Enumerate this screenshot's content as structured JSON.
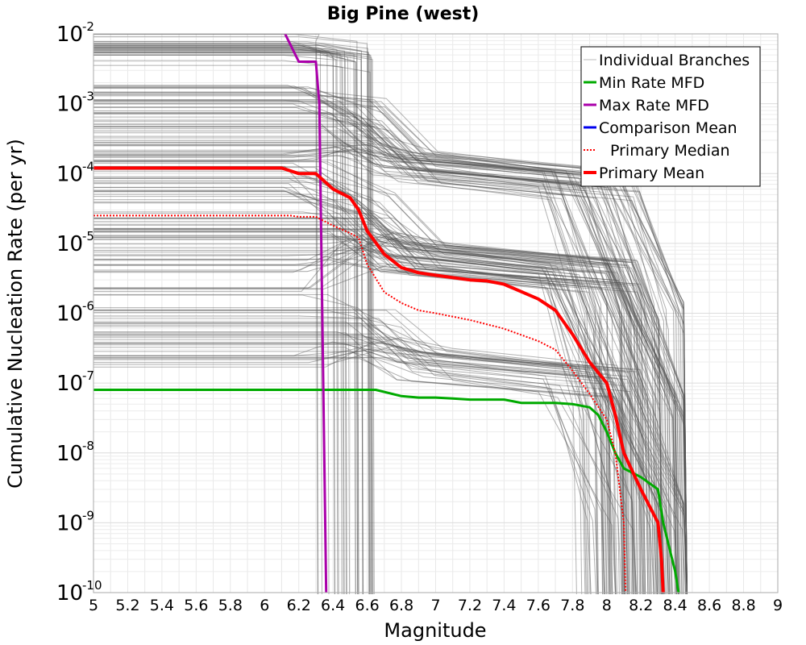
{
  "chart_data": {
    "type": "line",
    "title": "Big Pine (west)",
    "xlabel": "Magnitude",
    "ylabel": "Cumulative Nucleation Rate (per yr)",
    "xlim": [
      5,
      9
    ],
    "ylim": [
      1e-10,
      0.01
    ],
    "yscale": "log",
    "grid": true,
    "legend_position": "top-right",
    "x_ticks": [
      "5",
      "5.2",
      "5.4",
      "5.6",
      "5.8",
      "6",
      "6.2",
      "6.4",
      "6.6",
      "6.8",
      "7",
      "7.2",
      "7.4",
      "7.6",
      "7.8",
      "8",
      "8.2",
      "8.4",
      "8.6",
      "8.8",
      "9"
    ],
    "y_ticks": [
      {
        "base": "10",
        "exp": "-2",
        "value": 0.01
      },
      {
        "base": "10",
        "exp": "-3",
        "value": 0.001
      },
      {
        "base": "10",
        "exp": "-4",
        "value": 0.0001
      },
      {
        "base": "10",
        "exp": "-5",
        "value": 1e-05
      },
      {
        "base": "10",
        "exp": "-6",
        "value": 1e-06
      },
      {
        "base": "10",
        "exp": "-7",
        "value": 1e-07
      },
      {
        "base": "10",
        "exp": "-8",
        "value": 1e-08
      },
      {
        "base": "10",
        "exp": "-9",
        "value": 1e-09
      },
      {
        "base": "10",
        "exp": "-10",
        "value": 1e-10
      }
    ],
    "series": [
      {
        "name": "Min Rate MFD",
        "color": "#00aa00",
        "style": "solid",
        "x": [
          5.0,
          6.65,
          6.8,
          6.9,
          7.0,
          7.1,
          7.2,
          7.4,
          7.5,
          7.6,
          7.7,
          7.8,
          7.9,
          7.95,
          8.0,
          8.05,
          8.1,
          8.2,
          8.3,
          8.33,
          8.4,
          8.42
        ],
        "y": [
          8e-08,
          8e-08,
          6.5e-08,
          6.2e-08,
          6.2e-08,
          6e-08,
          5.8e-08,
          5.8e-08,
          5.2e-08,
          5.2e-08,
          5.2e-08,
          5e-08,
          4.5e-08,
          3.5e-08,
          2e-08,
          1e-08,
          6e-09,
          4.5e-09,
          3e-09,
          1e-09,
          2e-10,
          1e-10
        ]
      },
      {
        "name": "Max Rate MFD",
        "color": "#aa00aa",
        "style": "solid",
        "x": [
          6.12,
          6.2,
          6.3,
          6.32,
          6.36
        ],
        "y": [
          0.01,
          0.004,
          0.004,
          0.001,
          1e-10
        ]
      },
      {
        "name": "Comparison Mean",
        "color": "#0000ee",
        "style": "solid",
        "x": [],
        "y": []
      },
      {
        "name": "Primary Median",
        "color": "#ff0000",
        "style": "dotted",
        "x": [
          5.0,
          6.1,
          6.15,
          6.2,
          6.3,
          6.4,
          6.5,
          6.55,
          6.6,
          6.7,
          6.8,
          6.9,
          7.0,
          7.2,
          7.4,
          7.6,
          7.7,
          7.8,
          7.9,
          8.0,
          8.05,
          8.1,
          8.11
        ],
        "y": [
          2.5e-05,
          2.5e-05,
          2.5e-05,
          2.4e-05,
          2.4e-05,
          1.8e-05,
          1.4e-05,
          1.2e-05,
          5e-06,
          2e-06,
          1.4e-06,
          1.1e-06,
          1e-06,
          8e-07,
          6e-07,
          4e-07,
          3e-07,
          1.5e-07,
          7e-08,
          3e-08,
          1e-08,
          1e-09,
          1e-10
        ]
      },
      {
        "name": "Primary Mean",
        "color": "#ff0000",
        "style": "solid",
        "x": [
          5.0,
          6.1,
          6.2,
          6.3,
          6.4,
          6.5,
          6.55,
          6.6,
          6.7,
          6.8,
          6.9,
          7.0,
          7.2,
          7.3,
          7.4,
          7.6,
          7.7,
          7.8,
          7.9,
          8.0,
          8.05,
          8.1,
          8.2,
          8.3,
          8.32,
          8.33
        ],
        "y": [
          0.00012,
          0.00012,
          0.0001,
          0.0001,
          6e-05,
          4.5e-05,
          3e-05,
          1.5e-05,
          7e-06,
          4.5e-06,
          3.8e-06,
          3.5e-06,
          3e-06,
          2.9e-06,
          2.6e-06,
          1.6e-06,
          1.1e-06,
          5e-07,
          2e-07,
          1e-07,
          3.5e-08,
          1e-08,
          3e-09,
          1e-09,
          3e-10,
          1e-10
        ]
      }
    ],
    "individual_branches": {
      "name": "Individual Branches",
      "color": "#555555",
      "count": 200,
      "plateau_levels": [
        0.008,
        0.007,
        0.006,
        0.005,
        0.0015,
        0.0012,
        0.0009,
        0.0006,
        0.0004,
        0.00025,
        0.0002,
        0.00015,
        0.0001,
        7e-05,
        5e-05,
        3e-05,
        2e-05,
        1.5e-05,
        1e-05,
        7e-06,
        5e-06,
        2e-06,
        1e-06,
        7e-07,
        5e-07,
        3e-07,
        2e-07
      ]
    },
    "legend": [
      "Individual Branches",
      "Min Rate MFD",
      "Max Rate MFD",
      "Comparison Mean",
      "Primary Median",
      "Primary Mean"
    ]
  }
}
